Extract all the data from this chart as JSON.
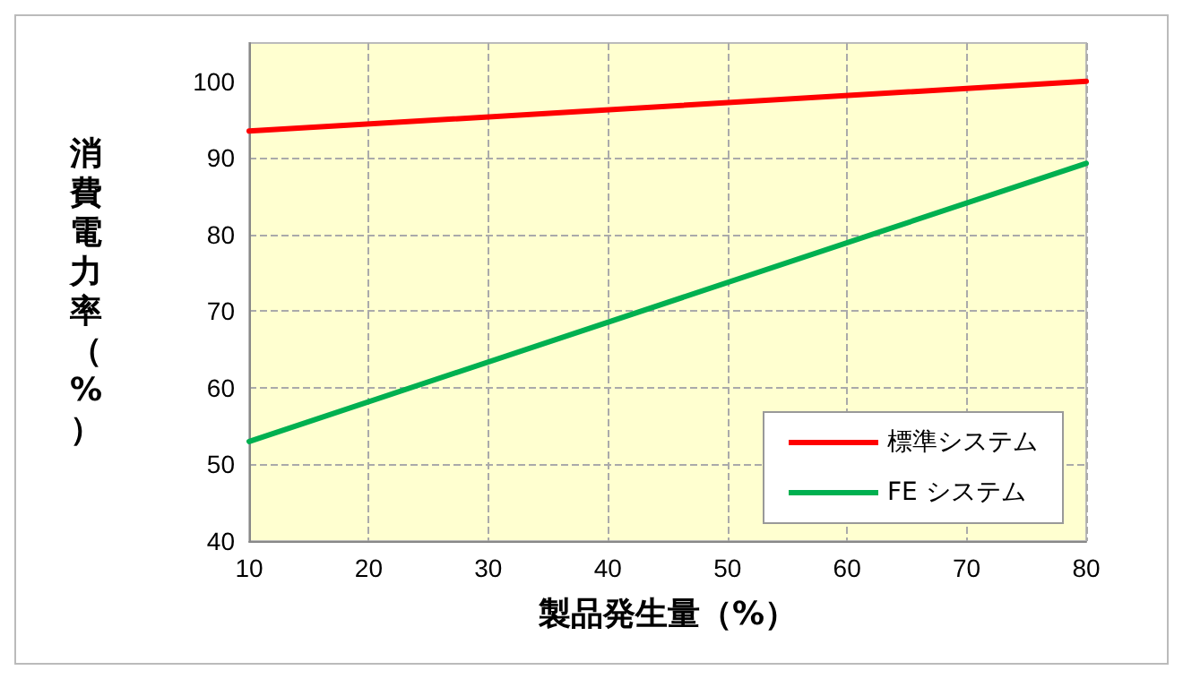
{
  "chart_data": {
    "type": "line",
    "xlabel": "製品発生量（%）",
    "ylabel": "消費電力率（%）",
    "x": [
      10,
      80
    ],
    "series": [
      {
        "name": "標準システム",
        "color": "#ff0000",
        "values": [
          93.5,
          100
        ]
      },
      {
        "name": "FE システム",
        "color": "#00b050",
        "values": [
          53,
          89.3
        ]
      }
    ],
    "xlim": [
      10,
      80
    ],
    "xticks": [
      10,
      20,
      30,
      40,
      50,
      60,
      70,
      80
    ],
    "ylim": [
      40,
      105
    ],
    "yticks": [
      40,
      50,
      60,
      70,
      80,
      90,
      100
    ],
    "grid": true,
    "legend": "bottom right",
    "marker": "none",
    "line_style": "solid"
  }
}
